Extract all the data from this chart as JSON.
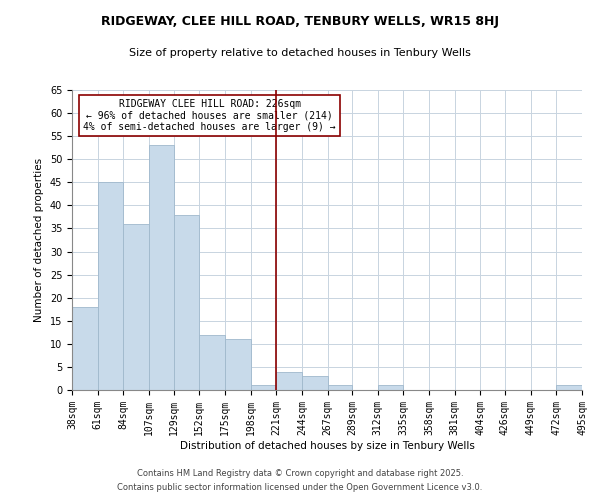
{
  "title": "RIDGEWAY, CLEE HILL ROAD, TENBURY WELLS, WR15 8HJ",
  "subtitle": "Size of property relative to detached houses in Tenbury Wells",
  "xlabel": "Distribution of detached houses by size in Tenbury Wells",
  "ylabel": "Number of detached properties",
  "bar_color": "#c8daea",
  "bar_edge_color": "#a0b8cc",
  "bins": [
    38,
    61,
    84,
    107,
    129,
    152,
    175,
    198,
    221,
    244,
    267,
    289,
    312,
    335,
    358,
    381,
    404,
    426,
    449,
    472,
    495
  ],
  "bin_labels": [
    "38sqm",
    "61sqm",
    "84sqm",
    "107sqm",
    "129sqm",
    "152sqm",
    "175sqm",
    "198sqm",
    "221sqm",
    "244sqm",
    "267sqm",
    "289sqm",
    "312sqm",
    "335sqm",
    "358sqm",
    "381sqm",
    "404sqm",
    "426sqm",
    "449sqm",
    "472sqm",
    "495sqm"
  ],
  "counts": [
    18,
    45,
    36,
    53,
    38,
    12,
    11,
    1,
    4,
    3,
    1,
    0,
    1,
    0,
    0,
    0,
    0,
    0,
    0,
    1
  ],
  "vline_x": 221,
  "vline_color": "#8b0000",
  "annotation_line1": "RIDGEWAY CLEE HILL ROAD: 226sqm",
  "annotation_line2": "← 96% of detached houses are smaller (214)",
  "annotation_line3": "4% of semi-detached houses are larger (9) →",
  "annotation_box_color": "#ffffff",
  "annotation_box_edge": "#8b0000",
  "ylim": [
    0,
    65
  ],
  "yticks": [
    0,
    5,
    10,
    15,
    20,
    25,
    30,
    35,
    40,
    45,
    50,
    55,
    60,
    65
  ],
  "footer1": "Contains HM Land Registry data © Crown copyright and database right 2025.",
  "footer2": "Contains public sector information licensed under the Open Government Licence v3.0.",
  "background_color": "#ffffff",
  "grid_color": "#c8d4e0",
  "title_fontsize": 9,
  "subtitle_fontsize": 8,
  "axis_label_fontsize": 7.5,
  "tick_fontsize": 7,
  "annotation_fontsize": 7,
  "footer_fontsize": 6
}
